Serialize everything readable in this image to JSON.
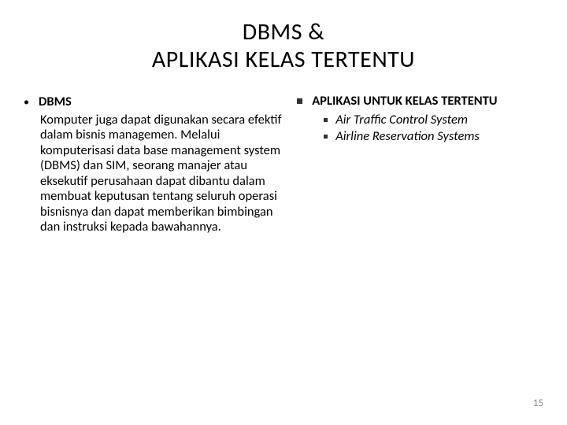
{
  "title_line1": "DBMS &",
  "title_line2": "APLIKASI KELAS TERTENTU",
  "left": {
    "heading": "DBMS",
    "body": "Komputer juga dapat digunakan secara efektif dalam bisnis managemen. Melalui komputerisasi data base management system (DBMS) dan SIM, seorang manajer atau eksekutif perusahaan dapat dibantu dalam membuat keputusan tentang seluruh operasi bisnisnya dan dapat memberikan bimbingan dan instruksi kepada bawahannya."
  },
  "right": {
    "heading": "APLIKASI UNTUK KELAS TERTENTU",
    "items": [
      "Air Traffic Control System",
      "Airline Reservation Systems"
    ]
  },
  "page_number": "15",
  "colors": {
    "background": "#ffffff",
    "text": "#000000",
    "page_num": "#888888"
  }
}
